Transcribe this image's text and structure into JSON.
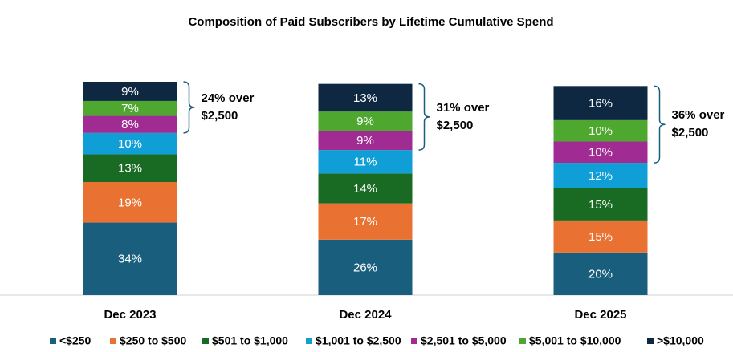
{
  "chart_data": {
    "type": "stacked_bar",
    "title": "Composition of Paid Subscribers by Lifetime Cumulative Spend",
    "categories": [
      "Dec 2023",
      "Dec 2024",
      "Dec 2025"
    ],
    "ylim": [
      0,
      100
    ],
    "series": [
      {
        "name": "<$250",
        "color": "#1a5e7e",
        "values": [
          34,
          26,
          20
        ],
        "value_labels": [
          "34%",
          "26%",
          "20%"
        ]
      },
      {
        "name": "$250 to $500",
        "color": "#e97132",
        "values": [
          19,
          17,
          15
        ],
        "value_labels": [
          "19%",
          "17%",
          "15%"
        ]
      },
      {
        "name": "$501 to $1,000",
        "color": "#196b24",
        "values": [
          13,
          14,
          15
        ],
        "value_labels": [
          "13%",
          "14%",
          "15%"
        ]
      },
      {
        "name": "$1,001 to $2,500",
        "color": "#0f9ed5",
        "values": [
          10,
          11,
          12
        ],
        "value_labels": [
          "10%",
          "11%",
          "12%"
        ]
      },
      {
        "name": "$2,501 to $5,000",
        "color": "#a02b93",
        "values": [
          8,
          9,
          10
        ],
        "value_labels": [
          "8%",
          "9%",
          "10%"
        ]
      },
      {
        "name": "$5,001 to $10,000",
        "color": "#4ea72e",
        "values": [
          7,
          9,
          10
        ],
        "value_labels": [
          "7%",
          "9%",
          "10%"
        ]
      },
      {
        "name": ">$10,000",
        "color": "#0e2841",
        "values": [
          9,
          13,
          16
        ],
        "value_labels": [
          "9%",
          "13%",
          "16%"
        ]
      }
    ],
    "annotations": [
      {
        "lines": [
          "24% over",
          "$2,500"
        ]
      },
      {
        "lines": [
          "31% over",
          "$2,500"
        ]
      },
      {
        "lines": [
          "36% over",
          "$2,500"
        ]
      }
    ]
  }
}
